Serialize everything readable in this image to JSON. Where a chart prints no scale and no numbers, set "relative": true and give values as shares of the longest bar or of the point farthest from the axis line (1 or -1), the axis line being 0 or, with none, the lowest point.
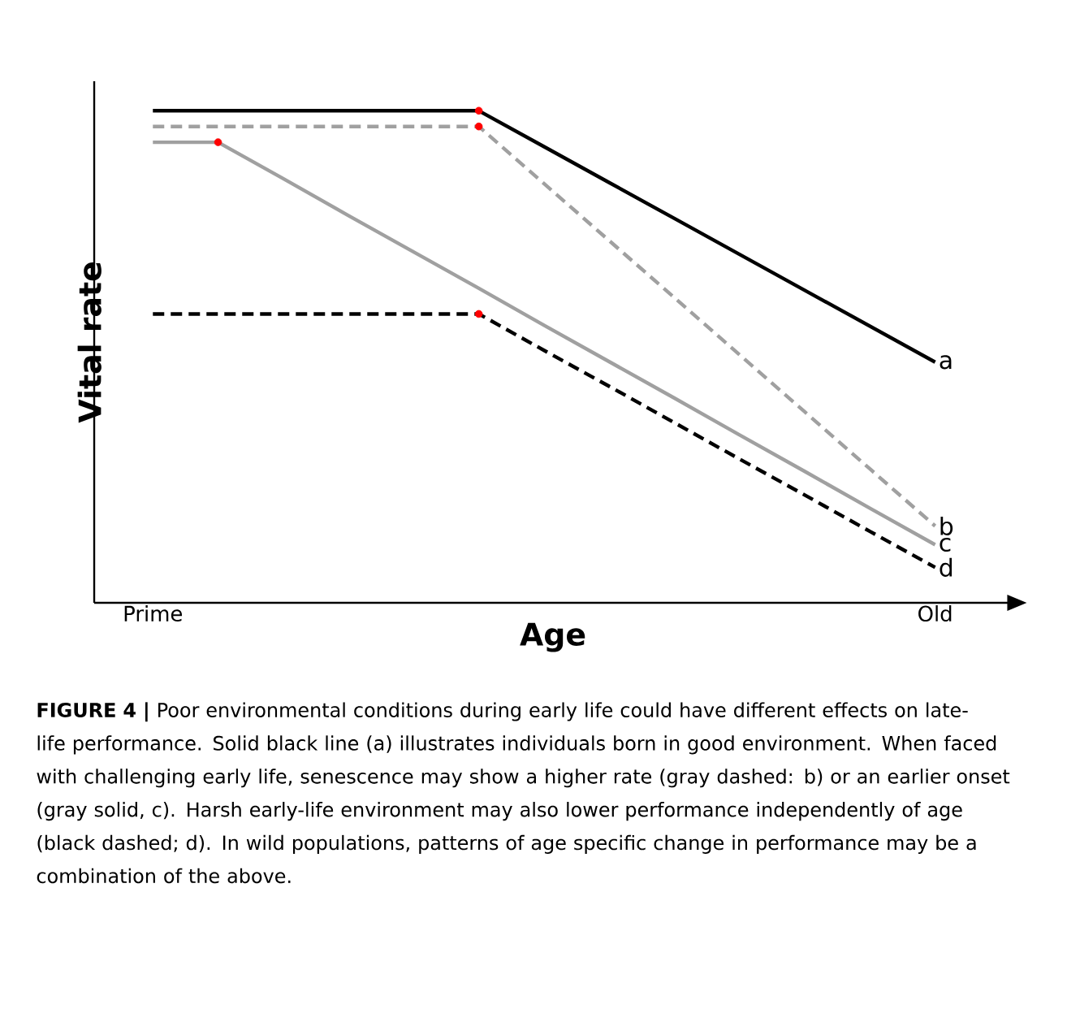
{
  "chart_data": {
    "type": "line",
    "relative": true,
    "xlabel": "Age",
    "ylabel": "Vital rate",
    "categories": [
      "Prime",
      null,
      null,
      null,
      null,
      null,
      null,
      null,
      null,
      null,
      null,
      null,
      "Old"
    ],
    "grid": false,
    "series": [
      {
        "name": "a",
        "color": "#000000",
        "line_style": "solid",
        "values": [
          1,
          1,
          1,
          1,
          1,
          1,
          0.927,
          0.854,
          0.781,
          0.708,
          0.635,
          0.562,
          0.489
        ]
      },
      {
        "name": "b",
        "color": "#a0a0a0",
        "line_style": "dashed",
        "values": [
          0.968,
          0.968,
          0.968,
          0.968,
          0.968,
          0.968,
          0.852,
          0.736,
          0.62,
          0.504,
          0.388,
          0.272,
          0.156
        ]
      },
      {
        "name": "c",
        "color": "#a0a0a0",
        "line_style": "solid",
        "values": [
          0.936,
          0.936,
          0.862,
          0.787,
          0.713,
          0.639,
          0.564,
          0.49,
          0.416,
          0.341,
          0.267,
          0.192,
          0.118
        ]
      },
      {
        "name": "d",
        "color": "#000000",
        "line_style": "dashed",
        "values": [
          0.587,
          0.587,
          0.587,
          0.587,
          0.587,
          0.587,
          0.513,
          0.44,
          0.366,
          0.292,
          0.219,
          0.145,
          0.072
        ]
      },
      {
        "type": "scatter",
        "marker": "circle",
        "color": "#ff0000",
        "values": [
          null,
          null,
          null,
          null,
          null,
          1,
          null,
          null,
          null,
          null,
          null,
          null,
          null
        ]
      },
      {
        "type": "scatter",
        "marker": "circle",
        "color": "#ff0000",
        "values": [
          null,
          null,
          null,
          null,
          null,
          0.968,
          null,
          null,
          null,
          null,
          null,
          null,
          null
        ]
      },
      {
        "type": "scatter",
        "marker": "circle",
        "color": "#ff0000",
        "values": [
          null,
          0.936,
          null,
          null,
          null,
          0.587,
          null,
          null,
          null,
          null,
          null,
          null,
          null
        ]
      }
    ],
    "annotations": [
      "**FIGURE 4 |** Poor environmental conditions during early life could have different effects on late-life performance. Solid black line (a) illustrates individuals born in good environment. When faced with challenging early life, senescence may show a higher rate (gray dashed: b) or an earlier onset (gray solid, c). Harsh early-life environment may also lower performance independently of age (black dashed; d). In wild populations, patterns of age specific change in performance may be a combination of the above."
    ]
  }
}
